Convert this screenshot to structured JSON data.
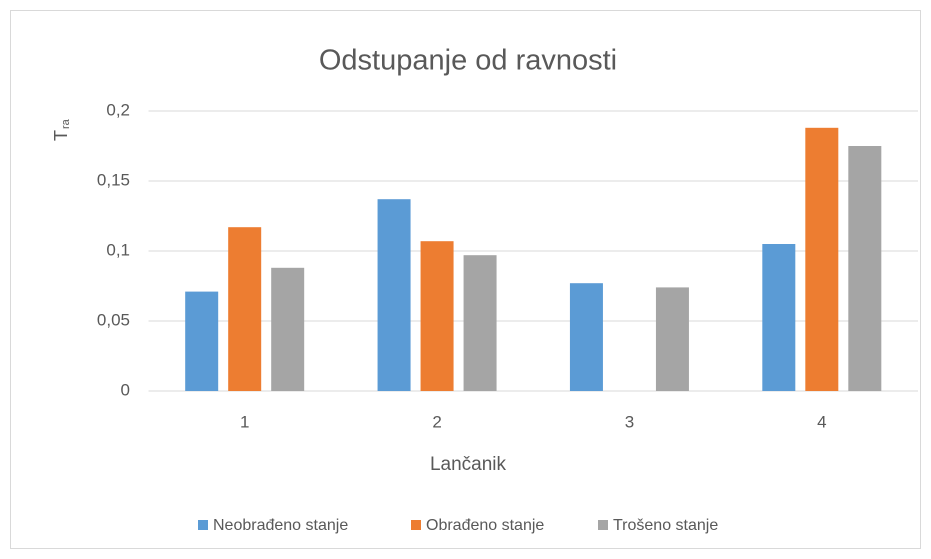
{
  "chart_data": {
    "type": "bar",
    "title": "Odstupanje od ravnosti",
    "ylabel": "T",
    "ylabel_sub": "ra",
    "xlabel": "Lančanik",
    "categories": [
      "1",
      "2",
      "3",
      "4"
    ],
    "series": [
      {
        "name": "Neobrađeno stanje",
        "color": "#5b9bd5",
        "values": [
          0.071,
          0.137,
          0.077,
          0.105
        ]
      },
      {
        "name": "Obrađeno stanje",
        "color": "#ed7d31",
        "values": [
          0.117,
          0.107,
          null,
          0.188
        ]
      },
      {
        "name": "Trošeno stanje",
        "color": "#a5a5a5",
        "values": [
          0.088,
          0.097,
          0.074,
          0.175
        ]
      }
    ],
    "ylim": [
      0,
      0.2
    ],
    "yticks": [
      0,
      {
        "value": 0.05,
        "label": "0,05"
      },
      {
        "value": 0.1,
        "label": "0,1"
      },
      {
        "value": 0.15,
        "label": "0,15"
      },
      {
        "value": 0.2,
        "label": "0,2"
      }
    ],
    "grid": true,
    "legend": "bottom"
  }
}
